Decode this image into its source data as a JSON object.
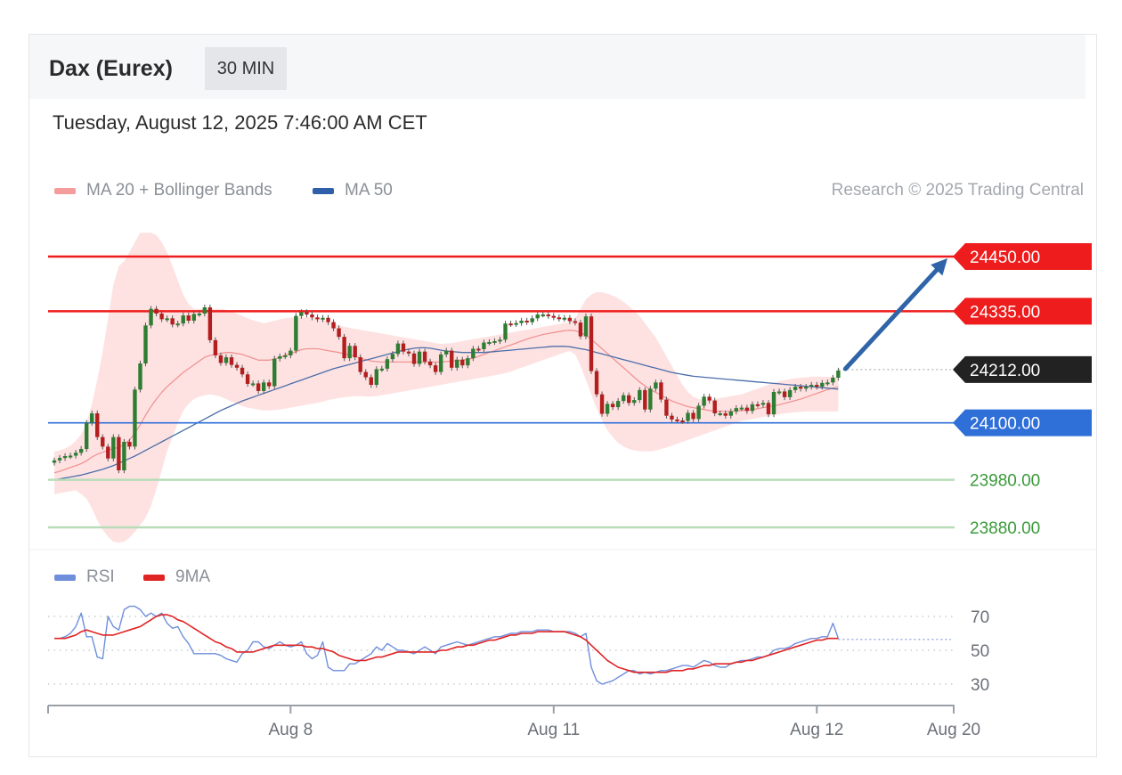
{
  "header": {
    "title": "Dax (Eurex)",
    "timeframe": "30 MIN"
  },
  "timestamp": "Tuesday, August 12, 2025 7:46:00 AM CET",
  "legend": {
    "ma20_bb": "MA 20 + Bollinger Bands",
    "ma50": "MA 50",
    "credit": "Research © 2025 Trading Central",
    "rsi": "RSI",
    "rsi_ma": "9MA"
  },
  "colors": {
    "resistance": "#ee1c1c",
    "support_key": "#2f6fd8",
    "support_minor": "#b8dcb8",
    "candle_up": "#2e7d32",
    "candle_down": "#b31e1e",
    "bollinger_fill": "#fdd8d8",
    "ma20": "#f19494",
    "ma50": "#4b6ea9",
    "pivot": "#222222",
    "rsi": "#6f8fdc",
    "rsi_ma": "#e02424",
    "arrow": "#2f64a8"
  },
  "levels": [
    {
      "label": "24450.00",
      "value": 24450,
      "kind": "resistance"
    },
    {
      "label": "24335.00",
      "value": 24335,
      "kind": "resistance"
    },
    {
      "label": "24212.00",
      "value": 24212,
      "kind": "pivot"
    },
    {
      "label": "24100.00",
      "value": 24100,
      "kind": "support_key"
    },
    {
      "label": "23980.00",
      "value": 23980,
      "kind": "support_minor"
    },
    {
      "label": "23880.00",
      "value": 23880,
      "kind": "support_minor"
    }
  ],
  "rsi_ticks": [
    {
      "label": "70",
      "value": 70
    },
    {
      "label": "50",
      "value": 50
    },
    {
      "label": "30",
      "value": 30
    }
  ],
  "x_ticks": [
    {
      "label": "Aug 8",
      "index": 44
    },
    {
      "label": "Aug 11",
      "index": 93
    },
    {
      "label": "Aug 12",
      "index": 142
    },
    {
      "label": "Aug 20",
      "index": 168
    }
  ],
  "chart_data": {
    "type": "line",
    "instrument": "Dax (Eurex)",
    "interval": "30 MIN",
    "price_axis_range": [
      23840,
      24460
    ],
    "rsi_range": [
      20,
      80
    ],
    "candles_close": [
      24021,
      24026,
      24030,
      24031,
      24037,
      24045,
      24100,
      24120,
      24070,
      24050,
      24025,
      24070,
      24000,
      24060,
      24050,
      24170,
      24225,
      24305,
      24340,
      24330,
      24318,
      24320,
      24307,
      24309,
      24326,
      24315,
      24329,
      24330,
      24343,
      24274,
      24242,
      24226,
      24238,
      24222,
      24216,
      24202,
      24182,
      24183,
      24167,
      24185,
      24177,
      24235,
      24240,
      24242,
      24252,
      24325,
      24333,
      24328,
      24322,
      24318,
      24321,
      24312,
      24299,
      24281,
      24236,
      24262,
      24238,
      24207,
      24196,
      24180,
      24213,
      24214,
      24234,
      24245,
      24267,
      24250,
      24246,
      24224,
      24250,
      24229,
      24221,
      24207,
      24244,
      24252,
      24216,
      24233,
      24221,
      24236,
      24256,
      24255,
      24269,
      24270,
      24272,
      24275,
      24309,
      24308,
      24310,
      24315,
      24312,
      24320,
      24328,
      24328,
      24325,
      24322,
      24319,
      24321,
      24314,
      24311,
      24282,
      24324,
      24209,
      24160,
      24119,
      24140,
      24133,
      24146,
      24158,
      24142,
      24148,
      24169,
      24128,
      24172,
      24185,
      24149,
      24115,
      24107,
      24105,
      24104,
      24121,
      24108,
      24136,
      24155,
      24147,
      24120,
      24120,
      24115,
      24124,
      24131,
      24132,
      24125,
      24139,
      24138,
      24142,
      24118,
      24165,
      24166,
      24154,
      24169,
      24176,
      24172,
      24176,
      24180,
      24176,
      24184,
      24185,
      24195,
      24210
    ],
    "ma20": [
      23995,
      23998,
      24002,
      24006,
      24010,
      24014,
      24020,
      24028,
      24034,
      24038,
      24042,
      24046,
      24048,
      24055,
      24064,
      24078,
      24096,
      24116,
      24134,
      24150,
      24164,
      24176,
      24186,
      24196,
      24206,
      24214,
      24222,
      24230,
      24238,
      24242,
      24244,
      24246,
      24248,
      24248,
      24246,
      24244,
      24240,
      24236,
      24232,
      24232,
      24232,
      24234,
      24238,
      24242,
      24246,
      24250,
      24254,
      24256,
      24256,
      24256,
      24254,
      24252,
      24250,
      24248,
      24245,
      24243,
      24240,
      24236,
      24233,
      24230,
      24229,
      24228,
      24228,
      24228,
      24228,
      24228,
      24228,
      24228,
      24228,
      24228,
      24228,
      24228,
      24228,
      24229,
      24230,
      24231,
      24232,
      24234,
      24236,
      24240,
      24244,
      24248,
      24252,
      24256,
      24260,
      24264,
      24268,
      24272,
      24276,
      24280,
      24283,
      24286,
      24288,
      24290,
      24292,
      24294,
      24295,
      24294,
      24290,
      24284,
      24276,
      24266,
      24256,
      24246,
      24236,
      24226,
      24216,
      24206,
      24196,
      24186,
      24178,
      24170,
      24164,
      24158,
      24152,
      24146,
      24142,
      24138,
      24134,
      24132,
      24130,
      24128,
      24126,
      24124,
      24124,
      24124,
      24124,
      24125,
      24126,
      24127,
      24128,
      24130,
      24132,
      24134,
      24136,
      24138,
      24141,
      24144,
      24147,
      24150,
      24154,
      24158,
      24162,
      24166,
      24170,
      24173,
      24176
    ],
    "bb_upper": [
      24040,
      24042,
      24046,
      24052,
      24062,
      24076,
      24100,
      24140,
      24190,
      24250,
      24320,
      24390,
      24430,
      24440,
      24460,
      24480,
      24500,
      24500,
      24500,
      24495,
      24480,
      24460,
      24430,
      24400,
      24370,
      24350,
      24340,
      24340,
      24340,
      24340,
      24340,
      24340,
      24338,
      24334,
      24330,
      24325,
      24320,
      24316,
      24313,
      24310,
      24312,
      24315,
      24318,
      24320,
      24321,
      24322,
      24322,
      24322,
      24322,
      24320,
      24317,
      24313,
      24309,
      24305,
      24302,
      24300,
      24298,
      24296,
      24294,
      24292,
      24290,
      24288,
      24286,
      24284,
      24282,
      24280,
      24278,
      24276,
      24274,
      24272,
      24270,
      24268,
      24266,
      24267,
      24268,
      24270,
      24272,
      24274,
      24276,
      24278,
      24280,
      24282,
      24284,
      24286,
      24288,
      24290,
      24292,
      24294,
      24296,
      24298,
      24300,
      24302,
      24304,
      24306,
      24308,
      24310,
      24312,
      24320,
      24340,
      24360,
      24370,
      24375,
      24375,
      24372,
      24368,
      24362,
      24355,
      24346,
      24336,
      24325,
      24310,
      24295,
      24280,
      24260,
      24240,
      24220,
      24200,
      24180,
      24165,
      24155,
      24150,
      24148,
      24148,
      24150,
      24152,
      24154,
      24156,
      24158,
      24160,
      24164,
      24168,
      24172,
      24176,
      24180,
      24184,
      24188,
      24190,
      24192,
      24194,
      24195,
      24196,
      24197,
      24197,
      24197,
      24197,
      24197,
      24197
    ],
    "bb_lower": [
      23950,
      23952,
      23954,
      23956,
      23958,
      23950,
      23940,
      23920,
      23895,
      23875,
      23860,
      23850,
      23848,
      23850,
      23858,
      23870,
      23885,
      23900,
      23925,
      23960,
      24000,
      24040,
      24070,
      24100,
      24125,
      24140,
      24150,
      24155,
      24158,
      24160,
      24158,
      24155,
      24150,
      24145,
      24140,
      24135,
      24132,
      24130,
      24128,
      24126,
      24126,
      24127,
      24128,
      24130,
      24132,
      24134,
      24136,
      24138,
      24140,
      24142,
      24145,
      24148,
      24150,
      24152,
      24154,
      24155,
      24156,
      24156,
      24155,
      24155,
      24156,
      24158,
      24160,
      24162,
      24164,
      24166,
      24168,
      24170,
      24172,
      24174,
      24176,
      24178,
      24180,
      24182,
      24184,
      24186,
      24188,
      24190,
      24192,
      24194,
      24196,
      24198,
      24200,
      24202,
      24205,
      24208,
      24212,
      24216,
      24220,
      24224,
      24228,
      24232,
      24236,
      24240,
      24244,
      24248,
      24251,
      24244,
      24220,
      24190,
      24160,
      24130,
      24105,
      24085,
      24070,
      24058,
      24050,
      24045,
      24042,
      24040,
      24040,
      24040,
      24042,
      24045,
      24048,
      24052,
      24056,
      24060,
      24064,
      24068,
      24072,
      24076,
      24080,
      24084,
      24088,
      24092,
      24096,
      24100,
      24104,
      24106,
      24108,
      24110,
      24112,
      24114,
      24116,
      24118,
      24120,
      24121,
      24122,
      24123,
      24124,
      24124,
      24124,
      24124,
      24124,
      24124,
      24124
    ],
    "ma50": [
      23980,
      23982,
      23984,
      23986,
      23988,
      23990,
      23993,
      23996,
      23999,
      24002,
      24006,
      24010,
      24015,
      24020,
      24025,
      24030,
      24036,
      24042,
      24048,
      24054,
      24060,
      24066,
      24072,
      24078,
      24084,
      24090,
      24096,
      24102,
      24108,
      24114,
      24120,
      24126,
      24131,
      24136,
      24141,
      24146,
      24150,
      24154,
      24158,
      24162,
      24166,
      24170,
      24174,
      24178,
      24182,
      24186,
      24190,
      24194,
      24198,
      24202,
      24206,
      24210,
      24214,
      24217,
      24220,
      24223,
      24226,
      24229,
      24232,
      24235,
      24238,
      24241,
      24244,
      24247,
      24250,
      24253,
      24255,
      24257,
      24258,
      24258,
      24257,
      24255,
      24253,
      24251,
      24250,
      24249,
      24248,
      24248,
      24248,
      24248,
      24248,
      24249,
      24250,
      24251,
      24252,
      24253,
      24254,
      24255,
      24256,
      24257,
      24258,
      24259,
      24260,
      24261,
      24261,
      24261,
      24260,
      24258,
      24256,
      24254,
      24251,
      24248,
      24245,
      24242,
      24239,
      24236,
      24233,
      24230,
      24227,
      24224,
      24221,
      24218,
      24215,
      24212,
      24209,
      24206,
      24204,
      24202,
      24200,
      24198,
      24197,
      24196,
      24195,
      24194,
      24193,
      24192,
      24191,
      24190,
      24189,
      24188,
      24187,
      24186,
      24185,
      24184,
      24183,
      24182,
      24181,
      24180,
      24179,
      24178,
      24177,
      24176,
      24175,
      24174,
      24173,
      24172,
      24171
    ],
    "rsi": [
      57,
      57,
      58,
      60,
      64,
      72,
      58,
      58,
      46,
      45,
      70,
      64,
      62,
      74,
      76,
      76,
      74,
      70,
      72,
      70,
      72,
      66,
      63,
      64,
      58,
      54,
      48,
      48,
      48,
      48,
      48,
      47,
      45,
      44,
      43,
      48,
      50,
      55,
      55,
      52,
      51,
      53,
      55,
      53,
      52,
      53,
      55,
      48,
      45,
      47,
      55,
      40,
      38,
      38,
      38,
      42,
      42,
      44,
      46,
      48,
      52,
      50,
      54,
      52,
      50,
      50,
      49,
      48,
      50,
      52,
      50,
      48,
      52,
      53,
      54,
      55,
      54,
      53,
      54,
      55,
      56,
      57,
      58,
      58,
      59,
      60,
      60,
      61,
      61,
      61,
      62,
      62,
      62,
      61,
      61,
      61,
      61,
      60,
      58,
      60,
      40,
      32,
      30,
      31,
      32,
      34,
      36,
      38,
      38,
      36,
      37,
      36,
      37,
      38,
      38,
      39,
      40,
      41,
      41,
      40,
      42,
      44,
      43,
      41,
      40,
      40,
      42,
      43,
      44,
      44,
      45,
      46,
      46,
      47,
      50,
      51,
      51,
      52,
      54,
      55,
      56,
      57,
      57,
      58,
      58,
      66,
      57
    ],
    "rsi_9ma": [
      57,
      57,
      57,
      58,
      59,
      61,
      62,
      61,
      60,
      59,
      59,
      59,
      60,
      61,
      62,
      63,
      64,
      66,
      68,
      70,
      71,
      71,
      70,
      68,
      67,
      65,
      63,
      61,
      59,
      57,
      55,
      54,
      52,
      51,
      49,
      49,
      49,
      49,
      50,
      51,
      52,
      53,
      53,
      53,
      53,
      53,
      53,
      52,
      52,
      51,
      51,
      50,
      49,
      47,
      46,
      45,
      44,
      44,
      44,
      45,
      46,
      46,
      47,
      48,
      49,
      49,
      49,
      49,
      49,
      49,
      49,
      49,
      50,
      50,
      51,
      52,
      52,
      53,
      53,
      54,
      55,
      56,
      56,
      57,
      58,
      59,
      59,
      60,
      60,
      60,
      61,
      61,
      61,
      61,
      61,
      61,
      60,
      59,
      58,
      56,
      53,
      50,
      47,
      44,
      42,
      40,
      39,
      38,
      37,
      37,
      37,
      37,
      37,
      37,
      37,
      38,
      38,
      38,
      39,
      39,
      40,
      41,
      41,
      42,
      42,
      42,
      42,
      43,
      43,
      44,
      44,
      45,
      46,
      47,
      48,
      49,
      50,
      51,
      52,
      53,
      54,
      55,
      56,
      56,
      57,
      57,
      57
    ]
  }
}
